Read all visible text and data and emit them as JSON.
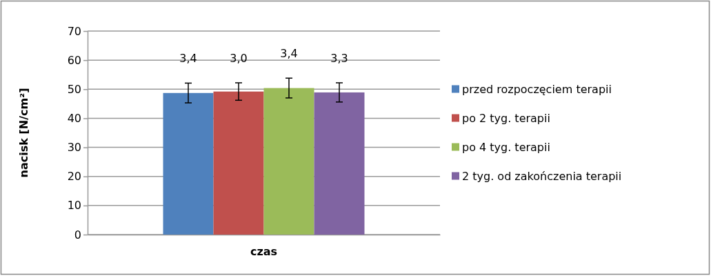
{
  "chart_data": {
    "type": "bar",
    "xlabel": "czas",
    "ylabel": "nacisk [N/cm²]",
    "categories": [
      null
    ],
    "series": [
      {
        "name": "przed rozpoczęciem terapii",
        "color": "#4f81bd",
        "values": [
          48.7
        ],
        "errors": [
          3.4
        ]
      },
      {
        "name": "po 2 tyg. terapii",
        "color": "#c0504d",
        "values": [
          49.2
        ],
        "errors": [
          3.0
        ]
      },
      {
        "name": "po 4 tyg. terapii",
        "color": "#9bbb59",
        "values": [
          50.4
        ],
        "errors": [
          3.4
        ]
      },
      {
        "name": "2 tyg. od zakończenia terapii",
        "color": "#8064a2",
        "values": [
          48.9
        ],
        "errors": [
          3.3
        ]
      }
    ],
    "annotations": [
      "3,4",
      "3,0",
      "3,4",
      "3,3"
    ],
    "ylim": [
      0,
      70
    ],
    "yticks": [
      0,
      10,
      20,
      30,
      40,
      50,
      60,
      70
    ],
    "grid": "y",
    "legend": "right"
  }
}
